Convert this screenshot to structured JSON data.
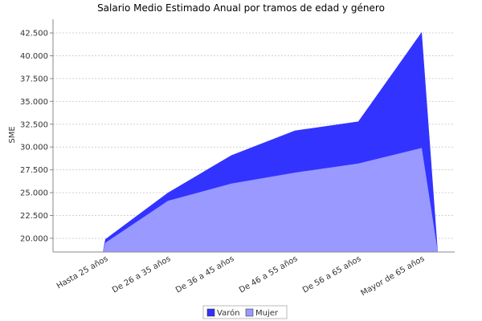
{
  "chart_data": {
    "type": "area",
    "title": "Salario Medio Estimado Anual por tramos de edad y género",
    "ylabel": "SME",
    "xlabel": "",
    "categories": [
      "Hasta 25  años",
      "De 26  a 35  años",
      "De 36  a 45  años",
      "De 46  a 55  años",
      "De 56  a 65  años",
      "Mayor de 65  años"
    ],
    "yticks": [
      "20.000",
      "22.500",
      "25.000",
      "27.500",
      "30.000",
      "32.500",
      "35.000",
      "37.500",
      "40.000",
      "42.500"
    ],
    "ylim": [
      18500,
      44000
    ],
    "grid": true,
    "legend": "bottom-center",
    "series": [
      {
        "name": "Varón",
        "color": "#3333ff",
        "values": [
          19900,
          25000,
          29100,
          31800,
          32800,
          42600
        ]
      },
      {
        "name": "Mujer",
        "color": "#9999ff",
        "values": [
          19500,
          24100,
          26000,
          27200,
          28200,
          29900
        ]
      }
    ]
  }
}
